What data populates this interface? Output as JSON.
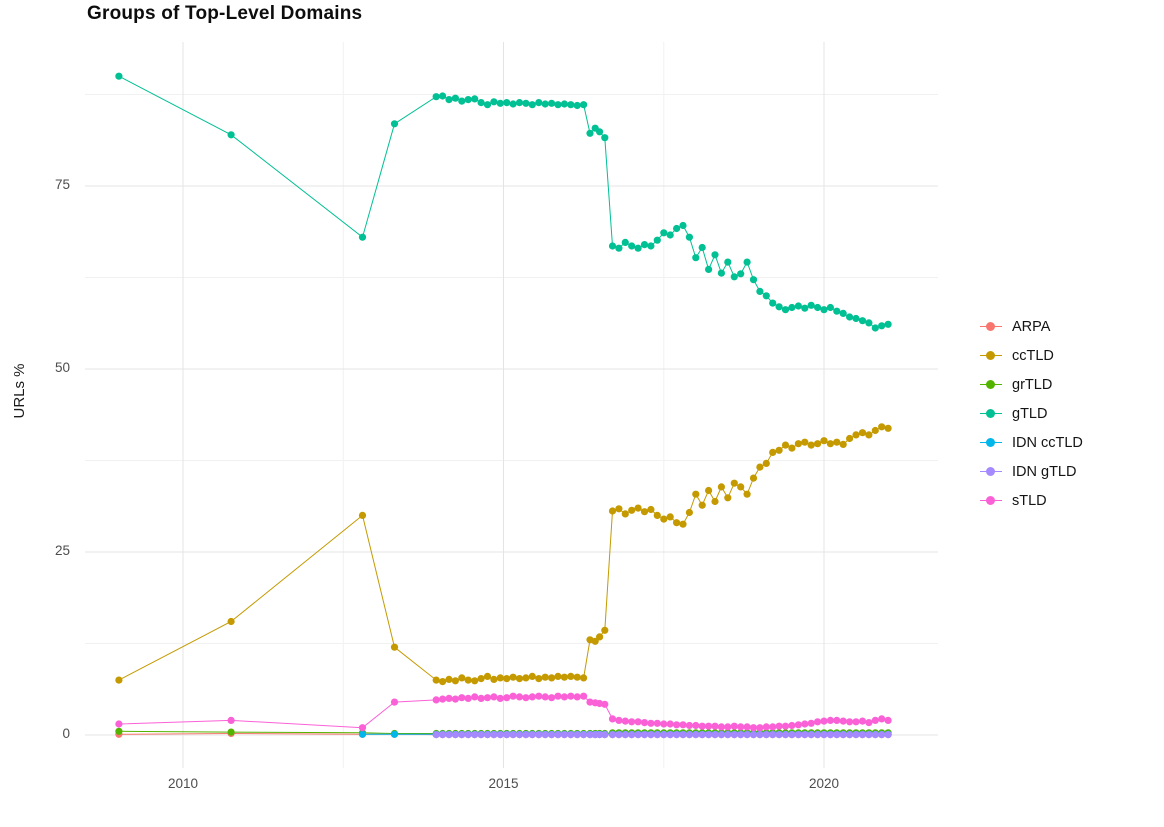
{
  "chart_data": {
    "type": "line",
    "title": "Groups of Top-Level Domains",
    "xlabel": "",
    "ylabel": "URLs %",
    "x_ticks": {
      "labels": [
        "2010",
        "2015",
        "2020"
      ],
      "values": [
        2010,
        2015,
        2020
      ]
    },
    "y_ticks": {
      "labels": [
        "0",
        "25",
        "50",
        "75"
      ],
      "values": [
        0,
        25,
        50,
        75
      ]
    },
    "xlim": [
      2008.5,
      2021.8
    ],
    "ylim": [
      -4.5,
      94.7
    ],
    "grid": true,
    "legend_position": "right",
    "x": [
      2009.0,
      2010.75,
      2012.8,
      2013.3,
      2013.95,
      2014.05,
      2014.15,
      2014.25,
      2014.35,
      2014.45,
      2014.55,
      2014.65,
      2014.75,
      2014.85,
      2014.95,
      2015.05,
      2015.15,
      2015.25,
      2015.35,
      2015.45,
      2015.55,
      2015.65,
      2015.75,
      2015.85,
      2015.95,
      2016.05,
      2016.15,
      2016.25,
      2016.35,
      2016.43,
      2016.5,
      2016.58,
      2016.7,
      2016.8,
      2016.9,
      2017.0,
      2017.1,
      2017.2,
      2017.3,
      2017.4,
      2017.5,
      2017.6,
      2017.7,
      2017.8,
      2017.9,
      2018.0,
      2018.1,
      2018.2,
      2018.3,
      2018.4,
      2018.5,
      2018.6,
      2018.7,
      2018.8,
      2018.9,
      2019.0,
      2019.1,
      2019.2,
      2019.3,
      2019.4,
      2019.5,
      2019.6,
      2019.7,
      2019.8,
      2019.9,
      2020.0,
      2020.1,
      2020.2,
      2020.3,
      2020.4,
      2020.5,
      2020.6,
      2020.7,
      2020.8,
      2020.9,
      2021.0
    ],
    "series": [
      {
        "name": "ARPA",
        "color": "#F8766D",
        "values": [
          0.1,
          0.2,
          0.1,
          0.1,
          0.05,
          0.05,
          0.05,
          0.05,
          0.05,
          0.05,
          0.05,
          0.05,
          0.05,
          0.05,
          0.05,
          0.05,
          0.05,
          0.05,
          0.05,
          0.05,
          0.05,
          0.05,
          0.05,
          0.05,
          0.05,
          0.05,
          0.05,
          0.05,
          0.05,
          0.05,
          0.05,
          0.05,
          0.05,
          0.05,
          0.05,
          0.05,
          0.05,
          0.05,
          0.05,
          0.05,
          0.05,
          0.05,
          0.05,
          0.05,
          0.05,
          0.05,
          0.05,
          0.05,
          0.05,
          0.05,
          0.05,
          0.05,
          0.05,
          0.05,
          0.05,
          0.05,
          0.05,
          0.05,
          0.05,
          0.05,
          0.05,
          0.05,
          0.05,
          0.05,
          0.05,
          0.05,
          0.05,
          0.05,
          0.05,
          0.05,
          0.05,
          0.05,
          0.05,
          0.05,
          0.05,
          0.05
        ]
      },
      {
        "name": "ccTLD",
        "color": "#C49A00",
        "values": [
          7.5,
          15.5,
          30,
          12,
          7.5,
          7.3,
          7.6,
          7.4,
          7.8,
          7.5,
          7.4,
          7.7,
          8.0,
          7.6,
          7.8,
          7.7,
          7.9,
          7.7,
          7.8,
          8.0,
          7.7,
          7.9,
          7.8,
          8.0,
          7.9,
          8.0,
          7.9,
          7.8,
          13.0,
          12.8,
          13.4,
          14.3,
          30.6,
          30.9,
          30.2,
          30.7,
          31.0,
          30.5,
          30.8,
          30.0,
          29.5,
          29.8,
          29.0,
          28.8,
          30.4,
          32.9,
          31.4,
          33.4,
          31.9,
          33.9,
          32.4,
          34.4,
          33.9,
          32.9,
          35.1,
          36.6,
          37.1,
          38.6,
          38.9,
          39.6,
          39.2,
          39.8,
          40.0,
          39.6,
          39.8,
          40.2,
          39.8,
          40.0,
          39.7,
          40.5,
          41.0,
          41.3,
          41.0,
          41.6,
          42.1,
          41.9
        ]
      },
      {
        "name": "grTLD",
        "color": "#53B400",
        "values": [
          0.5,
          0.4,
          0.3,
          0.2,
          0.2,
          0.2,
          0.2,
          0.2,
          0.2,
          0.2,
          0.2,
          0.2,
          0.2,
          0.2,
          0.2,
          0.2,
          0.2,
          0.2,
          0.2,
          0.2,
          0.2,
          0.2,
          0.2,
          0.2,
          0.2,
          0.2,
          0.2,
          0.2,
          0.2,
          0.2,
          0.2,
          0.2,
          0.3,
          0.3,
          0.3,
          0.3,
          0.3,
          0.3,
          0.3,
          0.3,
          0.3,
          0.3,
          0.3,
          0.3,
          0.3,
          0.3,
          0.3,
          0.3,
          0.3,
          0.3,
          0.3,
          0.3,
          0.3,
          0.3,
          0.3,
          0.3,
          0.3,
          0.3,
          0.3,
          0.3,
          0.3,
          0.3,
          0.3,
          0.3,
          0.3,
          0.3,
          0.3,
          0.3,
          0.3,
          0.3,
          0.3,
          0.3,
          0.3,
          0.3,
          0.3,
          0.3
        ]
      },
      {
        "name": "gTLD",
        "color": "#00C094",
        "values": [
          90,
          82,
          68,
          83.5,
          87.2,
          87.3,
          86.8,
          87.0,
          86.6,
          86.8,
          86.9,
          86.4,
          86.1,
          86.5,
          86.3,
          86.4,
          86.2,
          86.4,
          86.3,
          86.1,
          86.4,
          86.2,
          86.3,
          86.1,
          86.2,
          86.1,
          86.0,
          86.1,
          82.2,
          82.9,
          82.4,
          81.6,
          66.8,
          66.5,
          67.3,
          66.8,
          66.5,
          67.0,
          66.8,
          67.6,
          68.6,
          68.3,
          69.2,
          69.6,
          68.0,
          65.2,
          66.6,
          63.6,
          65.6,
          63.1,
          64.6,
          62.6,
          63.0,
          64.6,
          62.2,
          60.6,
          60.0,
          59.0,
          58.5,
          58.1,
          58.4,
          58.6,
          58.3,
          58.7,
          58.4,
          58.1,
          58.4,
          57.9,
          57.6,
          57.1,
          56.9,
          56.6,
          56.3,
          55.6,
          55.9,
          56.1
        ]
      },
      {
        "name": "IDN ccTLD",
        "color": "#00B6EB",
        "values": [
          null,
          null,
          0.1,
          0.1,
          0.1,
          0.1,
          0.1,
          0.1,
          0.1,
          0.1,
          0.1,
          0.1,
          0.1,
          0.1,
          0.1,
          0.1,
          0.1,
          0.1,
          0.1,
          0.1,
          0.1,
          0.1,
          0.1,
          0.1,
          0.1,
          0.1,
          0.1,
          0.1,
          0.1,
          0.1,
          0.1,
          0.1,
          0.1,
          0.1,
          0.1,
          0.1,
          0.1,
          0.1,
          0.1,
          0.1,
          0.1,
          0.1,
          0.1,
          0.1,
          0.1,
          0.1,
          0.1,
          0.1,
          0.1,
          0.1,
          0.1,
          0.1,
          0.1,
          0.1,
          0.1,
          0.1,
          0.1,
          0.1,
          0.1,
          0.1,
          0.1,
          0.1,
          0.1,
          0.1,
          0.1,
          0.1,
          0.1,
          0.1,
          0.1,
          0.1,
          0.1,
          0.1,
          0.1,
          0.1,
          0.1,
          0.1
        ]
      },
      {
        "name": "IDN gTLD",
        "color": "#A58AFF",
        "values": [
          null,
          null,
          null,
          null,
          0.05,
          0.05,
          0.05,
          0.05,
          0.05,
          0.05,
          0.05,
          0.05,
          0.05,
          0.05,
          0.05,
          0.05,
          0.05,
          0.05,
          0.05,
          0.05,
          0.05,
          0.05,
          0.05,
          0.05,
          0.05,
          0.05,
          0.05,
          0.05,
          0.05,
          0.05,
          0.05,
          0.05,
          0.05,
          0.05,
          0.05,
          0.05,
          0.05,
          0.05,
          0.05,
          0.05,
          0.05,
          0.05,
          0.05,
          0.05,
          0.05,
          0.05,
          0.05,
          0.05,
          0.05,
          0.05,
          0.05,
          0.05,
          0.05,
          0.05,
          0.05,
          0.05,
          0.05,
          0.05,
          0.05,
          0.05,
          0.05,
          0.05,
          0.05,
          0.05,
          0.05,
          0.05,
          0.05,
          0.05,
          0.05,
          0.05,
          0.05,
          0.05,
          0.05,
          0.05,
          0.05,
          0.05
        ]
      },
      {
        "name": "sTLD",
        "color": "#FB61D7",
        "values": [
          1.5,
          2.0,
          1.0,
          4.5,
          4.8,
          4.9,
          5.0,
          4.9,
          5.1,
          5.0,
          5.2,
          5.0,
          5.1,
          5.2,
          5.0,
          5.1,
          5.3,
          5.2,
          5.1,
          5.2,
          5.3,
          5.2,
          5.1,
          5.3,
          5.2,
          5.3,
          5.2,
          5.3,
          4.5,
          4.4,
          4.3,
          4.2,
          2.2,
          2.0,
          1.9,
          1.8,
          1.8,
          1.7,
          1.6,
          1.6,
          1.5,
          1.5,
          1.4,
          1.4,
          1.3,
          1.3,
          1.2,
          1.2,
          1.2,
          1.1,
          1.1,
          1.2,
          1.1,
          1.1,
          1.0,
          1.0,
          1.1,
          1.1,
          1.2,
          1.2,
          1.3,
          1.4,
          1.5,
          1.6,
          1.8,
          1.9,
          2.0,
          2.0,
          1.9,
          1.8,
          1.8,
          1.9,
          1.7,
          2.0,
          2.2,
          2.0
        ]
      }
    ]
  }
}
